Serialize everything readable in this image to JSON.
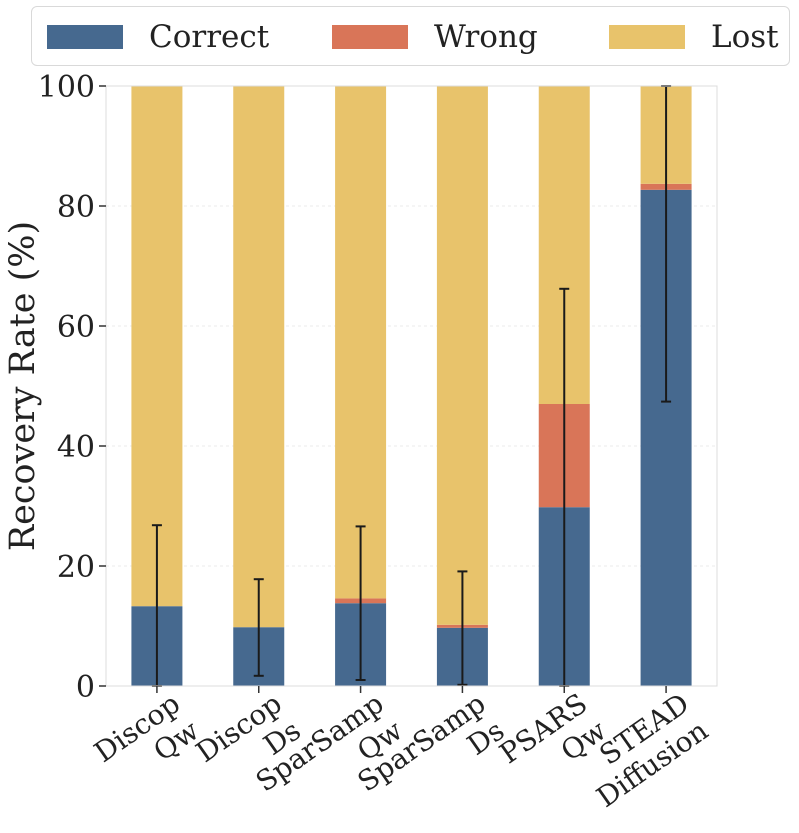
{
  "chart_data": {
    "type": "bar",
    "stacked": true,
    "categories": [
      [
        "Discop",
        "Qw"
      ],
      [
        "Discop",
        "Ds"
      ],
      [
        "SparSamp",
        "Qw"
      ],
      [
        "SparSamp",
        "Ds"
      ],
      [
        "PSARS",
        "Qw"
      ],
      [
        "STEAD",
        "Diffusion"
      ]
    ],
    "series": [
      {
        "name": "Correct",
        "color": "#46698f",
        "values": [
          13.3,
          9.8,
          13.8,
          9.7,
          29.8,
          82.7
        ]
      },
      {
        "name": "Wrong",
        "color": "#d97558",
        "values": [
          0.0,
          0.0,
          0.8,
          0.5,
          17.2,
          1.0
        ]
      },
      {
        "name": "Lost",
        "color": "#e8c36b",
        "values": [
          86.7,
          90.2,
          85.4,
          89.8,
          53.0,
          16.3
        ]
      }
    ],
    "error_bars": [
      {
        "center": 13.3,
        "low": 0.0,
        "high": 26.8
      },
      {
        "center": 9.8,
        "low": 1.7,
        "high": 17.8
      },
      {
        "center": 13.8,
        "low": 1.0,
        "high": 26.6
      },
      {
        "center": 9.7,
        "low": 0.2,
        "high": 19.1
      },
      {
        "center": 29.8,
        "low": 0.0,
        "high": 66.2
      },
      {
        "center": 82.7,
        "low": 47.4,
        "high": 100.0
      }
    ],
    "ylabel": "Recovery Rate (%)",
    "xlabel": "",
    "ylim": [
      0,
      100
    ],
    "yticks": [
      0,
      20,
      40,
      60,
      80,
      100
    ],
    "grid": "horizontal",
    "legend_position": "top"
  }
}
